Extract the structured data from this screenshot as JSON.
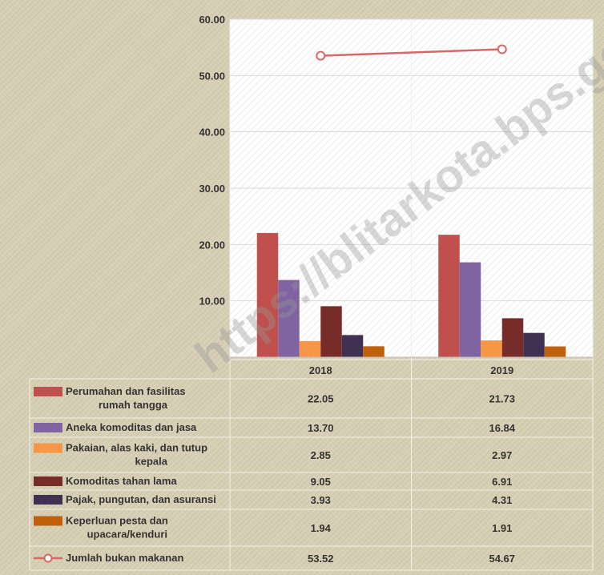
{
  "chart_data": {
    "type": "bar",
    "categories": [
      "2018",
      "2019"
    ],
    "ylim": [
      0,
      60
    ],
    "yticks": [
      "",
      "10.00",
      "20.00",
      "30.00",
      "40.00",
      "50.00",
      "60.00"
    ],
    "grid": true,
    "series": [
      {
        "name": "Perumahan dan fasilitas rumah tangga",
        "name_lines": [
          "Perumahan dan fasilitas",
          "rumah tangga"
        ],
        "values": [
          22.05,
          21.73
        ],
        "display": [
          "22.05",
          "21.73"
        ],
        "color": "#c0504d",
        "kind": "bar"
      },
      {
        "name": "Aneka komoditas dan jasa",
        "name_lines": [
          "Aneka komoditas dan jasa"
        ],
        "values": [
          13.7,
          16.84
        ],
        "display": [
          "13.70",
          "16.84"
        ],
        "color": "#8064a2",
        "kind": "bar"
      },
      {
        "name": "Pakaian, alas kaki, dan tutup kepala",
        "name_lines": [
          "Pakaian, alas kaki, dan tutup",
          "kepala"
        ],
        "values": [
          2.85,
          2.97
        ],
        "display": [
          "2.85",
          "2.97"
        ],
        "color": "#f79646",
        "kind": "bar"
      },
      {
        "name": "Komoditas tahan lama",
        "name_lines": [
          "Komoditas tahan lama"
        ],
        "values": [
          9.05,
          6.91
        ],
        "display": [
          "9.05",
          "6.91"
        ],
        "color": "#772c2a",
        "kind": "bar"
      },
      {
        "name": "Pajak, pungutan, dan asuransi",
        "name_lines": [
          "Pajak, pungutan, dan asuransi"
        ],
        "values": [
          3.93,
          4.31
        ],
        "display": [
          "3.93",
          "4.31"
        ],
        "color": "#403152",
        "kind": "bar"
      },
      {
        "name": "Keperluan pesta dan upacara/kenduri",
        "name_lines": [
          "Keperluan pesta dan",
          "upacara/kenduri"
        ],
        "values": [
          1.94,
          1.91
        ],
        "display": [
          "1.94",
          "1.91"
        ],
        "color": "#c0600a",
        "kind": "bar"
      },
      {
        "name": "Jumlah bukan makanan",
        "name_lines": [
          "Jumlah bukan makanan"
        ],
        "values": [
          53.52,
          54.67
        ],
        "display": [
          "53.52",
          "54.67"
        ],
        "color": "#d46a67",
        "kind": "line"
      }
    ]
  },
  "watermark": "https://blitarkota.bps.go.id"
}
